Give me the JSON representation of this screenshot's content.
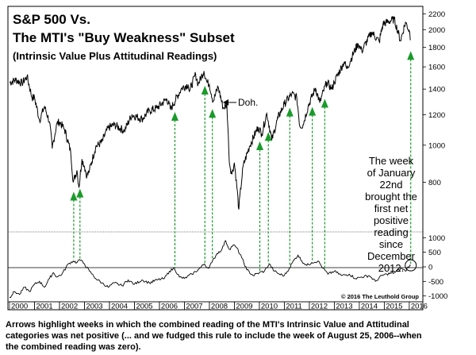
{
  "chart_data": {
    "type": "line",
    "title_lines": [
      "S&P 500 Vs.",
      "The MTI's \"Buy Weakness\" Subset",
      "(Intrinsic Value Plus Attitudinal Readings)"
    ],
    "x_tick_labels": [
      "2000",
      "2001",
      "2002",
      "2003",
      "2004",
      "2005",
      "2006",
      "2007",
      "2008",
      "2009",
      "2010",
      "2011",
      "2012",
      "2013",
      "2014",
      "2015",
      "2016"
    ],
    "price_axis": {
      "scale": "log",
      "ylim": [
        600,
        2300
      ],
      "ticks": [
        800,
        1000,
        1200,
        1400,
        1600,
        1800,
        2000,
        2200
      ]
    },
    "indicator_axis": {
      "ylim": [
        -1200,
        1200
      ],
      "ticks": [
        1000,
        500,
        0,
        -500,
        -1000
      ]
    },
    "series": [
      {
        "name": "S&P 500",
        "panel": "price",
        "points": [
          [
            2000.0,
            1455
          ],
          [
            2000.25,
            1480
          ],
          [
            2000.5,
            1450
          ],
          [
            2000.7,
            1510
          ],
          [
            2000.9,
            1330
          ],
          [
            2001.0,
            1330
          ],
          [
            2001.2,
            1160
          ],
          [
            2001.4,
            1260
          ],
          [
            2001.6,
            1150
          ],
          [
            2001.71,
            980
          ],
          [
            2001.9,
            1140
          ],
          [
            2002.0,
            1150
          ],
          [
            2002.2,
            1100
          ],
          [
            2002.45,
            960
          ],
          [
            2002.55,
            800
          ],
          [
            2002.7,
            860
          ],
          [
            2002.78,
            775
          ],
          [
            2002.9,
            920
          ],
          [
            2003.0,
            880
          ],
          [
            2003.1,
            830
          ],
          [
            2003.2,
            860
          ],
          [
            2003.45,
            990
          ],
          [
            2003.7,
            1020
          ],
          [
            2003.95,
            1110
          ],
          [
            2004.2,
            1130
          ],
          [
            2004.6,
            1090
          ],
          [
            2004.9,
            1200
          ],
          [
            2005.3,
            1170
          ],
          [
            2005.6,
            1230
          ],
          [
            2005.9,
            1250
          ],
          [
            2006.3,
            1320
          ],
          [
            2006.45,
            1240
          ],
          [
            2006.9,
            1410
          ],
          [
            2007.15,
            1440
          ],
          [
            2007.2,
            1380
          ],
          [
            2007.45,
            1530
          ],
          [
            2007.55,
            1440
          ],
          [
            2007.78,
            1560
          ],
          [
            2007.9,
            1460
          ],
          [
            2008.0,
            1440
          ],
          [
            2008.15,
            1300
          ],
          [
            2008.35,
            1420
          ],
          [
            2008.55,
            1250
          ],
          [
            2008.7,
            1270
          ],
          [
            2008.8,
            900
          ],
          [
            2008.9,
            840
          ],
          [
            2009.0,
            900
          ],
          [
            2009.18,
            680
          ],
          [
            2009.35,
            880
          ],
          [
            2009.6,
            990
          ],
          [
            2009.95,
            1115
          ],
          [
            2010.1,
            1070
          ],
          [
            2010.3,
            1210
          ],
          [
            2010.5,
            1030
          ],
          [
            2010.75,
            1180
          ],
          [
            2011.0,
            1280
          ],
          [
            2011.3,
            1360
          ],
          [
            2011.5,
            1330
          ],
          [
            2011.62,
            1120
          ],
          [
            2011.75,
            1130
          ],
          [
            2011.95,
            1260
          ],
          [
            2012.25,
            1410
          ],
          [
            2012.42,
            1290
          ],
          [
            2012.7,
            1460
          ],
          [
            2012.9,
            1400
          ],
          [
            2013.0,
            1460
          ],
          [
            2013.4,
            1650
          ],
          [
            2013.5,
            1580
          ],
          [
            2013.95,
            1840
          ],
          [
            2014.1,
            1760
          ],
          [
            2014.5,
            1970
          ],
          [
            2014.8,
            1860
          ],
          [
            2014.95,
            2070
          ],
          [
            2015.4,
            2130
          ],
          [
            2015.65,
            1870
          ],
          [
            2015.85,
            2090
          ],
          [
            2016.0,
            1990
          ],
          [
            2016.06,
            1880
          ]
        ]
      },
      {
        "name": "Buy Weakness subset (Intrinsic Value + Attitudinal)",
        "panel": "indicator",
        "points": [
          [
            2000.0,
            -1050
          ],
          [
            2000.2,
            -850
          ],
          [
            2000.4,
            -950
          ],
          [
            2000.6,
            -700
          ],
          [
            2000.8,
            -850
          ],
          [
            2001.0,
            -600
          ],
          [
            2001.2,
            -500
          ],
          [
            2001.4,
            -700
          ],
          [
            2001.6,
            -400
          ],
          [
            2001.75,
            -200
          ],
          [
            2001.9,
            -350
          ],
          [
            2002.1,
            -250
          ],
          [
            2002.35,
            100
          ],
          [
            2002.55,
            200
          ],
          [
            2002.7,
            150
          ],
          [
            2002.8,
            250
          ],
          [
            2003.0,
            100
          ],
          [
            2003.2,
            -150
          ],
          [
            2003.45,
            -400
          ],
          [
            2003.7,
            -550
          ],
          [
            2003.95,
            -700
          ],
          [
            2004.2,
            -550
          ],
          [
            2004.5,
            -650
          ],
          [
            2004.75,
            -450
          ],
          [
            2005.0,
            -600
          ],
          [
            2005.3,
            -450
          ],
          [
            2005.6,
            -550
          ],
          [
            2005.9,
            -450
          ],
          [
            2006.2,
            -400
          ],
          [
            2006.4,
            -150
          ],
          [
            2006.6,
            -50
          ],
          [
            2006.8,
            -350
          ],
          [
            2007.0,
            -400
          ],
          [
            2007.3,
            -250
          ],
          [
            2007.55,
            -100
          ],
          [
            2007.8,
            100
          ],
          [
            2007.95,
            -50
          ],
          [
            2008.1,
            150
          ],
          [
            2008.3,
            450
          ],
          [
            2008.5,
            600
          ],
          [
            2008.65,
            900
          ],
          [
            2008.8,
            600
          ],
          [
            2008.95,
            750
          ],
          [
            2009.1,
            650
          ],
          [
            2009.3,
            300
          ],
          [
            2009.5,
            -100
          ],
          [
            2009.75,
            -300
          ],
          [
            2010.0,
            -200
          ],
          [
            2010.2,
            -150
          ],
          [
            2010.4,
            100
          ],
          [
            2010.6,
            -150
          ],
          [
            2010.8,
            -250
          ],
          [
            2011.0,
            -300
          ],
          [
            2011.2,
            -50
          ],
          [
            2011.4,
            250
          ],
          [
            2011.55,
            400
          ],
          [
            2011.7,
            200
          ],
          [
            2011.9,
            50
          ],
          [
            2012.1,
            150
          ],
          [
            2012.35,
            200
          ],
          [
            2012.55,
            -50
          ],
          [
            2012.75,
            -250
          ],
          [
            2013.0,
            -150
          ],
          [
            2013.3,
            -300
          ],
          [
            2013.6,
            -250
          ],
          [
            2013.85,
            -400
          ],
          [
            2014.1,
            -350
          ],
          [
            2014.4,
            -300
          ],
          [
            2014.65,
            -500
          ],
          [
            2014.9,
            -300
          ],
          [
            2015.1,
            -250
          ],
          [
            2015.4,
            -200
          ],
          [
            2015.7,
            -50
          ],
          [
            2015.85,
            -150
          ],
          [
            2015.95,
            0
          ],
          [
            2016.06,
            50
          ]
        ]
      }
    ],
    "buy_signals_years": [
      2002.57,
      2002.82,
      2006.62,
      2007.82,
      2008.12,
      2010.02,
      2010.36,
      2011.22,
      2012.12,
      2012.62,
      2016.06
    ],
    "annotations": {
      "doh": "Doh.",
      "note_lines": [
        "The week",
        "of January",
        "22nd",
        "brought the",
        "first net",
        "positive",
        "reading",
        "since",
        "December",
        "2012."
      ]
    },
    "credit": "© 2016 The Leuthold Group",
    "caption_lines": [
      "Arrows highlight weeks in which the combined reading of the MTI's Intrinsic Value and Attitudinal",
      "categories was net positive (... and we fudged this rule to include the week of August 25, 2006--when",
      "the combined reading was zero)."
    ]
  }
}
